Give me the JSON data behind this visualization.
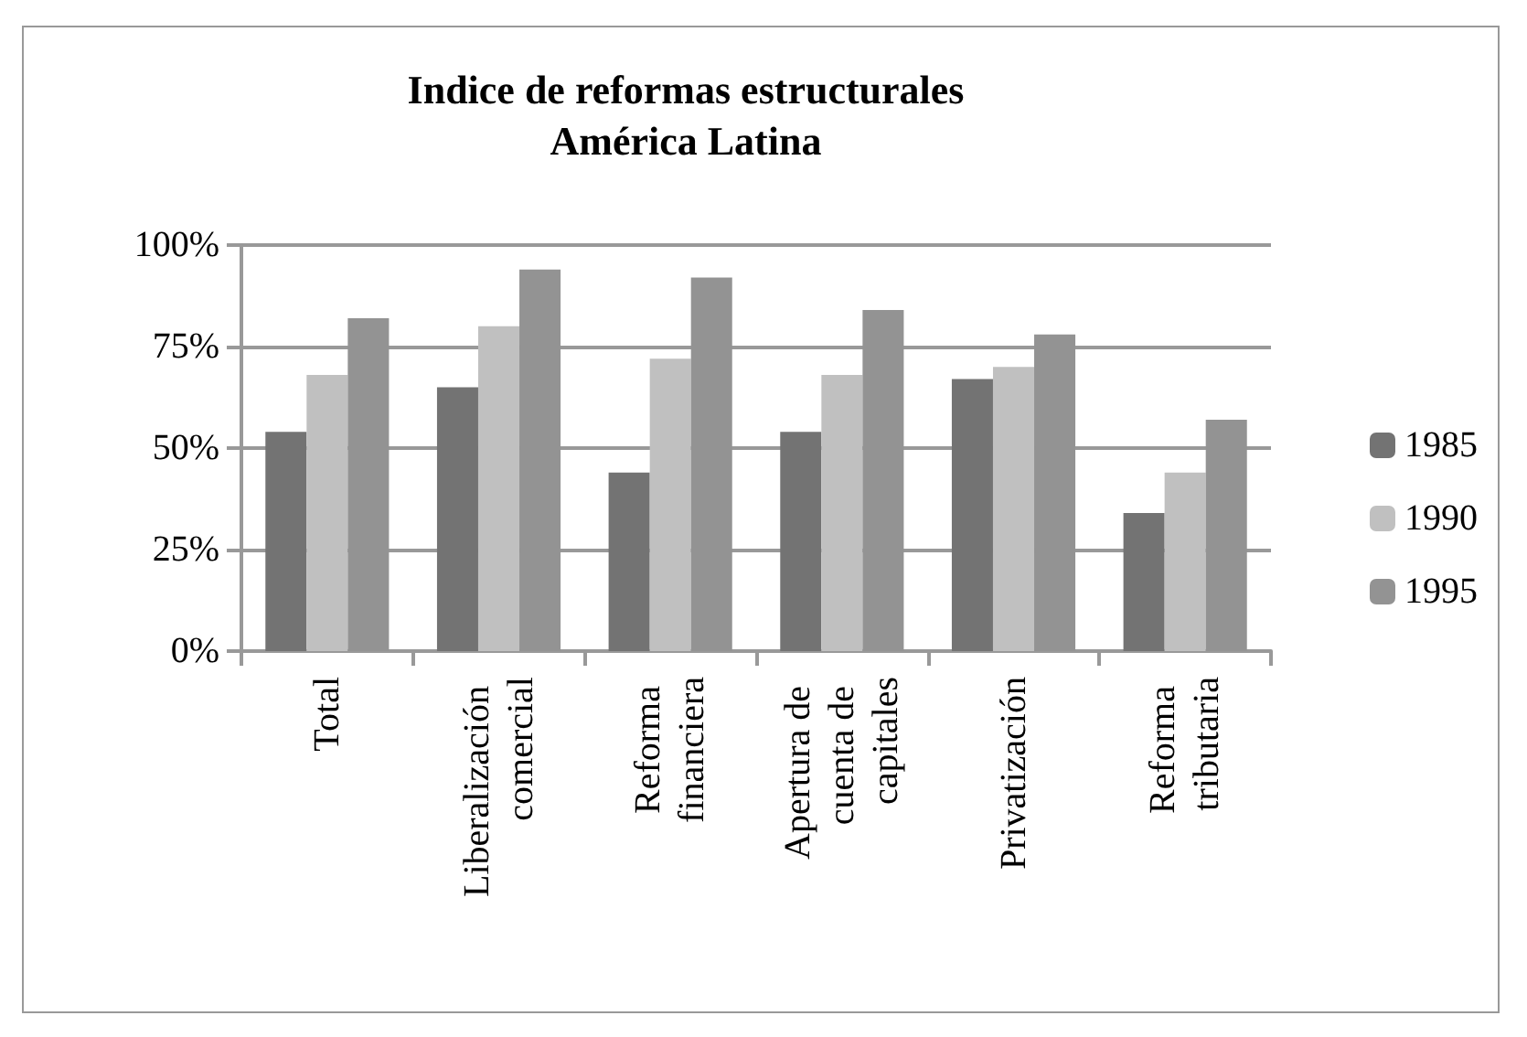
{
  "chart_data": {
    "type": "bar",
    "title": "Indice de reformas estructurales\nAmérica Latina",
    "categories": [
      "Total",
      "Liberalización comercial",
      "Reforma financiera",
      "Apertura de cuenta de capitales",
      "Privatización",
      "Reforma tributaria"
    ],
    "series": [
      {
        "name": "1985",
        "color": "#737373",
        "values": [
          54,
          65,
          44,
          54,
          67,
          34
        ]
      },
      {
        "name": "1990",
        "color": "#c0c0c0",
        "values": [
          68,
          80,
          72,
          68,
          70,
          44
        ]
      },
      {
        "name": "1995",
        "color": "#939393",
        "values": [
          82,
          94,
          92,
          84,
          78,
          57
        ]
      }
    ],
    "ylim": [
      0,
      100
    ],
    "yticks": [
      {
        "value": 0,
        "label": "0%"
      },
      {
        "value": 25,
        "label": "25%"
      },
      {
        "value": 50,
        "label": "50%"
      },
      {
        "value": 75,
        "label": "75%"
      },
      {
        "value": 100,
        "label": "100%"
      }
    ],
    "grid": "y",
    "legend": "right"
  }
}
